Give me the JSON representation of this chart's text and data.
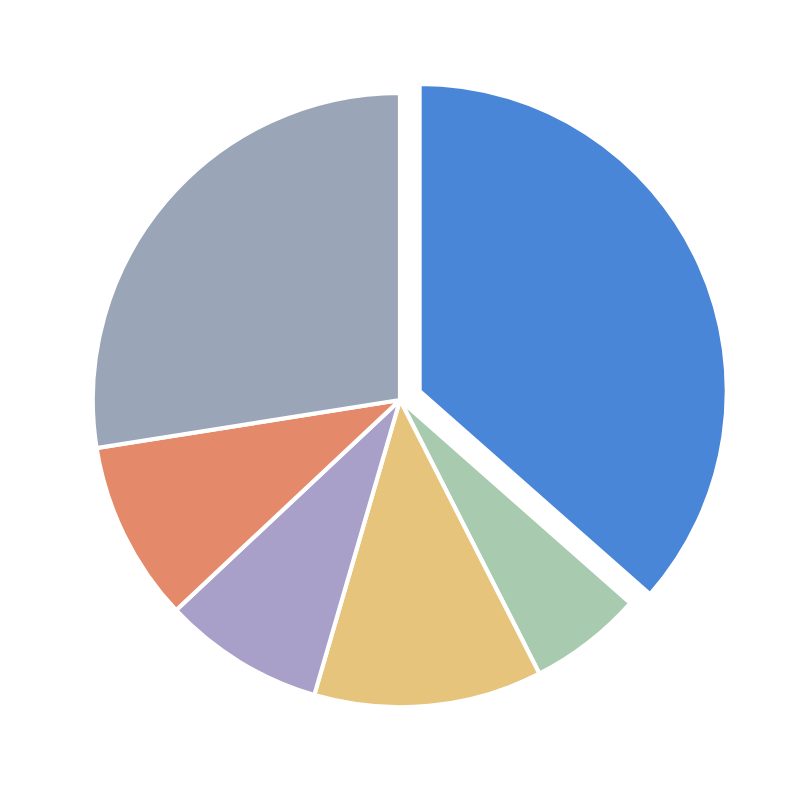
{
  "chart_data": {
    "type": "pie",
    "categories": [
      null,
      null,
      null,
      null,
      null,
      null
    ],
    "values": [
      36.5,
      6,
      12,
      8.5,
      9.5,
      27.5
    ],
    "colors": [
      "#4a86d8",
      "#a8cbb0",
      "#e6c47c",
      "#a8a0c8",
      "#e48a6a",
      "#9aa6b8"
    ]
  }
}
